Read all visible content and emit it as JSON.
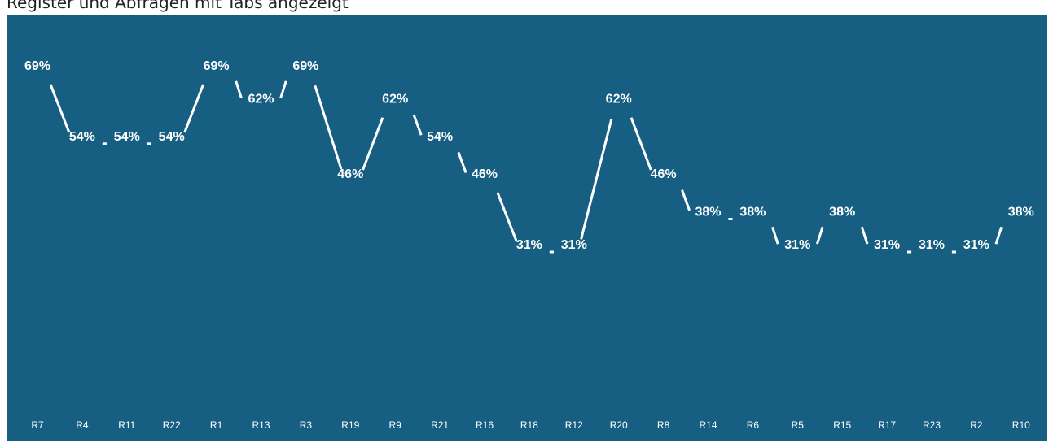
{
  "caption": "Register und Abfragen mit Tabs angezeigt",
  "chart_data": {
    "type": "line",
    "title": "",
    "xlabel": "",
    "ylabel": "",
    "ylim": [
      0,
      100
    ],
    "grid": false,
    "categories": [
      "R7",
      "R4",
      "R11",
      "R22",
      "R1",
      "R13",
      "R3",
      "R19",
      "R9",
      "R21",
      "R16",
      "R18",
      "R12",
      "R20",
      "R8",
      "R14",
      "R6",
      "R5",
      "R15",
      "R17",
      "R23",
      "R2",
      "R10"
    ],
    "values": [
      69,
      54,
      54,
      54,
      69,
      62,
      69,
      46,
      62,
      54,
      46,
      31,
      31,
      62,
      46,
      38,
      38,
      31,
      38,
      31,
      31,
      31,
      38
    ],
    "value_suffix": "%",
    "colors": {
      "background": "#165f82",
      "line": "#ffffff",
      "text": "#ffffff"
    }
  }
}
